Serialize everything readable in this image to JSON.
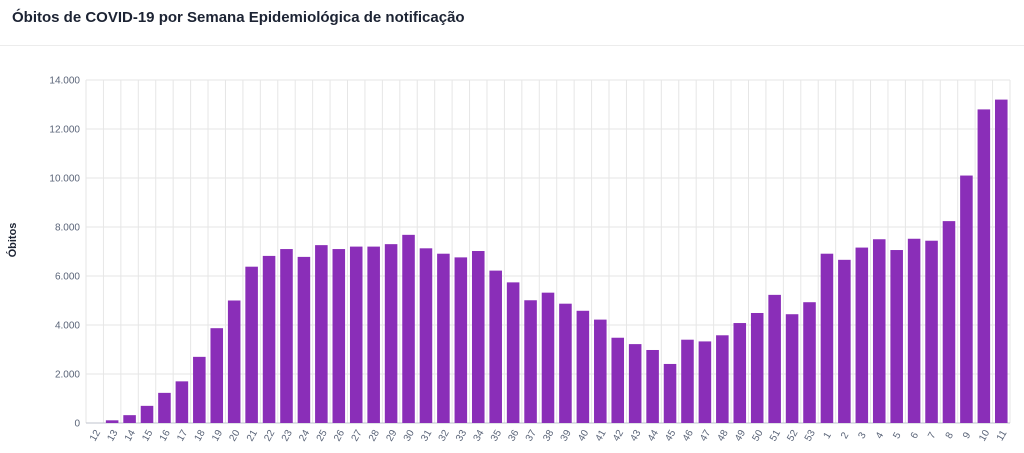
{
  "header": {
    "title": "Óbitos de COVID-19 por Semana Epidemiológica de notificação"
  },
  "colors": {
    "bar": "#8a2eb8",
    "grid": "#e6e6e6",
    "axis": "#bfc3cc",
    "text": "#5a6478"
  },
  "chart_data": {
    "type": "bar",
    "title": "Óbitos de COVID-19 por Semana Epidemiológica de notificação",
    "xlabel": "",
    "ylabel": "Óbitos",
    "ylim": [
      0,
      14000
    ],
    "yticks": [
      0,
      2000,
      4000,
      6000,
      8000,
      10000,
      12000,
      14000
    ],
    "ytick_labels": [
      "0",
      "2.000",
      "4.000",
      "6.000",
      "8.000",
      "10.000",
      "12.000",
      "14.000"
    ],
    "grid": true,
    "categories": [
      "12",
      "13",
      "14",
      "15",
      "16",
      "17",
      "18",
      "19",
      "20",
      "21",
      "22",
      "23",
      "24",
      "25",
      "26",
      "27",
      "28",
      "29",
      "30",
      "31",
      "32",
      "33",
      "34",
      "35",
      "36",
      "37",
      "38",
      "39",
      "40",
      "41",
      "42",
      "43",
      "44",
      "45",
      "46",
      "47",
      "48",
      "49",
      "50",
      "51",
      "52",
      "53",
      "1",
      "2",
      "3",
      "4",
      "5",
      "6",
      "7",
      "8",
      "9",
      "10",
      "11"
    ],
    "values": [
      0,
      110,
      320,
      700,
      1230,
      1700,
      2700,
      3870,
      5000,
      6380,
      6820,
      7100,
      6780,
      7260,
      7100,
      7200,
      7200,
      7300,
      7680,
      7130,
      6910,
      6760,
      7020,
      6220,
      5740,
      5010,
      5320,
      4870,
      4580,
      4220,
      3480,
      3220,
      2980,
      2410,
      3400,
      3330,
      3580,
      4080,
      4490,
      5230,
      4440,
      4930,
      6910,
      6660,
      7160,
      7500,
      7060,
      7520,
      7440,
      8240,
      10100,
      12800,
      13200
    ]
  }
}
